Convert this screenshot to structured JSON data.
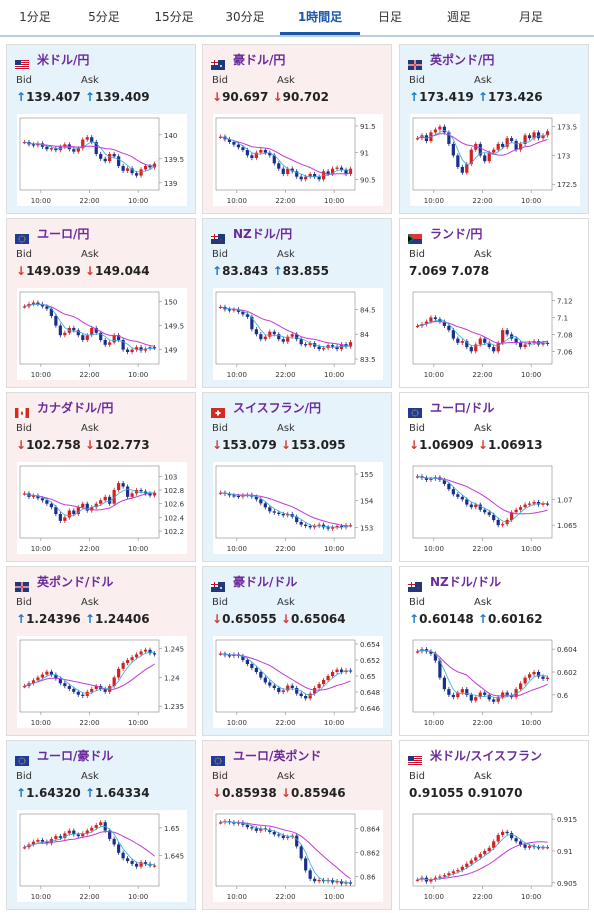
{
  "tabs": [
    {
      "label": "1分足",
      "active": false
    },
    {
      "label": "5分足",
      "active": false
    },
    {
      "label": "15分足",
      "active": false
    },
    {
      "label": "30分足",
      "active": false
    },
    {
      "label": "1時間足",
      "active": true
    },
    {
      "label": "日足",
      "active": false
    },
    {
      "label": "週足",
      "active": false
    },
    {
      "label": "月足",
      "active": false
    }
  ],
  "labels": {
    "bid": "Bid",
    "ask": "Ask"
  },
  "colors": {
    "up": "#1777c9",
    "down": "#d9362f",
    "candle_up": "#d32020",
    "candle_down": "#1a2f8a",
    "ma": "#c23bd8",
    "ma_short": "#33a9e0",
    "pair_name": "#6b2a9b"
  },
  "cards": [
    {
      "pair": "米ドル/円",
      "flag": "us-flag",
      "bg": "blue",
      "bid": "139.407",
      "ask": "139.409",
      "bid_dir": "up",
      "ask_dir": "up",
      "chart_data": {
        "type": "candlestick",
        "x_ticks": [
          "10:00",
          "22:00",
          "10:00"
        ],
        "y_ticks": [
          "140",
          "139.5",
          "139"
        ],
        "ylim": [
          138.85,
          140.35
        ],
        "close": [
          139.85,
          139.8,
          139.78,
          139.82,
          139.75,
          139.7,
          139.72,
          139.68,
          139.75,
          139.8,
          139.7,
          139.65,
          139.72,
          139.9,
          139.95,
          139.85,
          139.6,
          139.5,
          139.45,
          139.6,
          139.55,
          139.35,
          139.25,
          139.3,
          139.2,
          139.15,
          139.28,
          139.35,
          139.32,
          139.4
        ]
      }
    },
    {
      "pair": "豪ドル/円",
      "flag": "au-flag",
      "bg": "pink",
      "bid": "90.697",
      "ask": "90.702",
      "bid_dir": "down",
      "ask_dir": "down",
      "chart_data": {
        "type": "candlestick",
        "x_ticks": [
          "10:00",
          "22:00",
          "10:00"
        ],
        "y_ticks": [
          "91.5",
          "91",
          "90.5"
        ],
        "ylim": [
          90.3,
          91.65
        ],
        "close": [
          91.3,
          91.25,
          91.2,
          91.15,
          91.1,
          91.05,
          90.95,
          90.9,
          91.0,
          91.05,
          91.0,
          90.95,
          90.8,
          90.7,
          90.6,
          90.7,
          90.65,
          90.55,
          90.5,
          90.55,
          90.6,
          90.55,
          90.5,
          90.65,
          90.6,
          90.7,
          90.72,
          90.68,
          90.6,
          90.7
        ]
      }
    },
    {
      "pair": "英ポンド/円",
      "flag": "gb-flag",
      "bg": "blue",
      "bid": "173.419",
      "ask": "173.426",
      "bid_dir": "up",
      "ask_dir": "up",
      "chart_data": {
        "type": "candlestick",
        "x_ticks": [
          "10:00",
          "22:00",
          "10:00"
        ],
        "y_ticks": [
          "173.5",
          "173",
          "172.5"
        ],
        "ylim": [
          172.4,
          173.65
        ],
        "close": [
          173.3,
          173.35,
          173.25,
          173.4,
          173.45,
          173.5,
          173.4,
          173.2,
          173.0,
          172.8,
          172.7,
          172.85,
          173.1,
          173.2,
          173.0,
          172.9,
          173.05,
          173.1,
          173.2,
          173.15,
          173.3,
          173.25,
          173.1,
          173.2,
          173.35,
          173.3,
          173.4,
          173.3,
          173.35,
          173.42
        ]
      }
    },
    {
      "pair": "ユーロ/円",
      "flag": "eu-flag",
      "bg": "pink",
      "bid": "149.039",
      "ask": "149.044",
      "bid_dir": "down",
      "ask_dir": "down",
      "chart_data": {
        "type": "candlestick",
        "x_ticks": [
          "10:00",
          "22:00",
          "10:00"
        ],
        "y_ticks": [
          "150",
          "149.5",
          "149"
        ],
        "ylim": [
          148.7,
          150.2
        ],
        "close": [
          149.9,
          149.95,
          149.98,
          149.95,
          149.9,
          149.85,
          149.7,
          149.5,
          149.3,
          149.35,
          149.45,
          149.4,
          149.3,
          149.2,
          149.3,
          149.45,
          149.35,
          149.2,
          149.1,
          149.15,
          149.3,
          149.2,
          149.0,
          148.95,
          149.0,
          149.05,
          148.98,
          149.02,
          149.05,
          149.04
        ]
      }
    },
    {
      "pair": "NZドル/円",
      "flag": "nz-flag",
      "bg": "blue",
      "bid": "83.843",
      "ask": "83.855",
      "bid_dir": "up",
      "ask_dir": "up",
      "chart_data": {
        "type": "candlestick",
        "x_ticks": [
          "10:00",
          "22:00",
          "10:00"
        ],
        "y_ticks": [
          "84.5",
          "84",
          "83.5"
        ],
        "ylim": [
          83.4,
          84.85
        ],
        "close": [
          84.55,
          84.5,
          84.48,
          84.5,
          84.45,
          84.4,
          84.35,
          84.1,
          84.0,
          83.9,
          83.95,
          84.05,
          84.0,
          83.9,
          83.85,
          83.95,
          84.0,
          83.9,
          83.8,
          83.78,
          83.82,
          83.75,
          83.7,
          83.72,
          83.78,
          83.75,
          83.7,
          83.8,
          83.75,
          83.84
        ]
      }
    },
    {
      "pair": "ランド/円",
      "flag": "za-flag",
      "bg": "white",
      "bid": "7.069",
      "ask": "7.078",
      "bid_dir": "",
      "ask_dir": "",
      "chart_data": {
        "type": "candlestick",
        "x_ticks": [
          "10:00",
          "22:00",
          "10:00"
        ],
        "y_ticks": [
          "7.12",
          "7.1",
          "7.08",
          "7.06"
        ],
        "ylim": [
          7.045,
          7.13
        ],
        "close": [
          7.09,
          7.092,
          7.095,
          7.1,
          7.098,
          7.095,
          7.09,
          7.085,
          7.075,
          7.07,
          7.072,
          7.065,
          7.06,
          7.068,
          7.075,
          7.07,
          7.065,
          7.06,
          7.07,
          7.085,
          7.08,
          7.075,
          7.07,
          7.065,
          7.068,
          7.07,
          7.072,
          7.068,
          7.07,
          7.069
        ]
      }
    },
    {
      "pair": "カナダドル/円",
      "flag": "ca-flag",
      "bg": "pink",
      "bid": "102.758",
      "ask": "102.773",
      "bid_dir": "down",
      "ask_dir": "down",
      "chart_data": {
        "type": "candlestick",
        "x_ticks": [
          "10:00",
          "22:00",
          "10:00"
        ],
        "y_ticks": [
          "103",
          "102.8",
          "102.6",
          "102.4",
          "102.2"
        ],
        "ylim": [
          102.1,
          103.15
        ],
        "close": [
          102.75,
          102.7,
          102.72,
          102.68,
          102.65,
          102.6,
          102.55,
          102.45,
          102.35,
          102.4,
          102.5,
          102.45,
          102.55,
          102.6,
          102.5,
          102.55,
          102.6,
          102.65,
          102.7,
          102.6,
          102.8,
          102.9,
          102.85,
          102.7,
          102.75,
          102.8,
          102.78,
          102.75,
          102.72,
          102.76
        ]
      }
    },
    {
      "pair": "スイスフラン/円",
      "flag": "ch-flag",
      "bg": "blue",
      "bid": "153.079",
      "ask": "153.095",
      "bid_dir": "down",
      "ask_dir": "down",
      "chart_data": {
        "type": "candlestick",
        "x_ticks": [
          "10:00",
          "22:00",
          "10:00"
        ],
        "y_ticks": [
          "155",
          "154",
          "153"
        ],
        "ylim": [
          152.6,
          155.3
        ],
        "close": [
          154.3,
          154.25,
          154.2,
          154.18,
          154.15,
          154.2,
          154.22,
          154.15,
          154.05,
          153.9,
          153.75,
          153.6,
          153.55,
          153.5,
          153.45,
          153.5,
          153.4,
          153.2,
          153.1,
          153.05,
          153.0,
          153.05,
          153.1,
          153.0,
          152.95,
          153.0,
          153.05,
          153.0,
          153.08,
          153.08
        ]
      }
    },
    {
      "pair": "ユーロ/ドル",
      "flag": "eu-us-flag",
      "bg": "white",
      "bid": "1.06909",
      "ask": "1.06913",
      "bid_dir": "down",
      "ask_dir": "down",
      "chart_data": {
        "type": "candlestick",
        "x_ticks": [
          "10:00",
          "22:00",
          "10:00"
        ],
        "y_ticks": [
          "1.07",
          "1.065"
        ],
        "ylim": [
          1.0625,
          1.0765
        ],
        "close": [
          1.0745,
          1.0742,
          1.0738,
          1.074,
          1.0743,
          1.0738,
          1.073,
          1.072,
          1.071,
          1.0705,
          1.07,
          1.069,
          1.0685,
          1.069,
          1.068,
          1.0675,
          1.067,
          1.066,
          1.065,
          1.0652,
          1.066,
          1.0675,
          1.068,
          1.0685,
          1.069,
          1.0692,
          1.0695,
          1.069,
          1.0692,
          1.0691
        ]
      }
    },
    {
      "pair": "英ポンド/ドル",
      "flag": "gb-us-flag",
      "bg": "pink",
      "bid": "1.24396",
      "ask": "1.24406",
      "bid_dir": "up",
      "ask_dir": "up",
      "chart_data": {
        "type": "candlestick",
        "x_ticks": [
          "10:00",
          "22:00",
          "10:00"
        ],
        "y_ticks": [
          "1.245",
          "1.24",
          "1.235"
        ],
        "ylim": [
          1.234,
          1.2465
        ],
        "close": [
          1.2385,
          1.239,
          1.2395,
          1.24,
          1.2405,
          1.241,
          1.2405,
          1.2398,
          1.239,
          1.2385,
          1.238,
          1.2375,
          1.237,
          1.2368,
          1.2375,
          1.238,
          1.2385,
          1.238,
          1.2375,
          1.2385,
          1.24,
          1.2415,
          1.2425,
          1.243,
          1.2435,
          1.244,
          1.2445,
          1.2448,
          1.2442,
          1.244
        ]
      }
    },
    {
      "pair": "豪ドル/ドル",
      "flag": "au-us-flag",
      "bg": "blue",
      "bid": "0.65055",
      "ask": "0.65064",
      "bid_dir": "down",
      "ask_dir": "down",
      "chart_data": {
        "type": "candlestick",
        "x_ticks": [
          "10:00",
          "22:00",
          "10:00"
        ],
        "y_ticks": [
          "0.654",
          "0.652",
          "0.65",
          "0.648",
          "0.646"
        ],
        "ylim": [
          0.6455,
          0.6545
        ],
        "close": [
          0.6528,
          0.6526,
          0.6525,
          0.6527,
          0.6525,
          0.652,
          0.6515,
          0.651,
          0.6505,
          0.6498,
          0.6492,
          0.6488,
          0.6485,
          0.648,
          0.6482,
          0.6488,
          0.6485,
          0.6478,
          0.6475,
          0.6472,
          0.6478,
          0.6485,
          0.649,
          0.6495,
          0.65,
          0.6505,
          0.6508,
          0.6505,
          0.6507,
          0.6506
        ]
      }
    },
    {
      "pair": "NZドル/ドル",
      "flag": "nz-us-flag",
      "bg": "white",
      "bid": "0.60148",
      "ask": "0.60162",
      "bid_dir": "up",
      "ask_dir": "up",
      "chart_data": {
        "type": "candlestick",
        "x_ticks": [
          "10:00",
          "22:00",
          "10:00"
        ],
        "y_ticks": [
          "0.604",
          "0.602",
          "0.6"
        ],
        "ylim": [
          0.5985,
          0.6048
        ],
        "close": [
          0.6038,
          0.604,
          0.6038,
          0.6036,
          0.603,
          0.6015,
          0.6005,
          0.6,
          0.5998,
          0.6002,
          0.6005,
          0.6,
          0.5995,
          0.5998,
          0.6002,
          0.6,
          0.5996,
          0.5994,
          0.5998,
          0.6002,
          0.6,
          0.5998,
          0.6005,
          0.601,
          0.6015,
          0.6018,
          0.602,
          0.6016,
          0.6014,
          0.6015
        ]
      }
    },
    {
      "pair": "ユーロ/豪ドル",
      "flag": "eu-au-flag",
      "bg": "blue",
      "bid": "1.64320",
      "ask": "1.64334",
      "bid_dir": "up",
      "ask_dir": "up",
      "chart_data": {
        "type": "candlestick",
        "x_ticks": [
          "10:00",
          "22:00",
          "10:00"
        ],
        "y_ticks": [
          "1.65",
          "1.645"
        ],
        "ylim": [
          1.6395,
          1.6525
        ],
        "close": [
          1.6465,
          1.647,
          1.6475,
          1.6478,
          1.6475,
          1.6472,
          1.648,
          1.6485,
          1.6482,
          1.649,
          1.6495,
          1.6488,
          1.6485,
          1.649,
          1.6495,
          1.65,
          1.6505,
          1.651,
          1.6495,
          1.648,
          1.647,
          1.6455,
          1.6445,
          1.644,
          1.6435,
          1.643,
          1.6438,
          1.6435,
          1.6432,
          1.6432
        ]
      }
    },
    {
      "pair": "ユーロ/英ポンド",
      "flag": "eu-gb-flag",
      "bg": "pink",
      "bid": "0.85938",
      "ask": "0.85946",
      "bid_dir": "down",
      "ask_dir": "down",
      "chart_data": {
        "type": "candlestick",
        "x_ticks": [
          "10:00",
          "22:00",
          "10:00"
        ],
        "y_ticks": [
          "0.864",
          "0.862",
          "0.86"
        ],
        "ylim": [
          0.8592,
          0.8652
        ],
        "close": [
          0.8645,
          0.8646,
          0.8645,
          0.8644,
          0.8645,
          0.8643,
          0.8641,
          0.864,
          0.8638,
          0.864,
          0.8639,
          0.8637,
          0.8635,
          0.8634,
          0.8632,
          0.8633,
          0.8634,
          0.8625,
          0.8615,
          0.8605,
          0.8598,
          0.8596,
          0.8597,
          0.8596,
          0.8597,
          0.8595,
          0.8596,
          0.8594,
          0.8595,
          0.8594
        ]
      }
    },
    {
      "pair": "米ドル/スイスフラン",
      "flag": "us-ch-flag",
      "bg": "white",
      "bid": "0.91055",
      "ask": "0.91070",
      "bid_dir": "",
      "ask_dir": "",
      "chart_data": {
        "type": "candlestick",
        "x_ticks": [
          "10:00",
          "22:00",
          "10:00"
        ],
        "y_ticks": [
          "0.915",
          "0.91",
          "0.905"
        ],
        "ylim": [
          0.9045,
          0.9158
        ],
        "close": [
          0.9055,
          0.9058,
          0.9052,
          0.9055,
          0.9058,
          0.906,
          0.9062,
          0.9065,
          0.9068,
          0.907,
          0.9075,
          0.908,
          0.9085,
          0.909,
          0.9095,
          0.91,
          0.9105,
          0.9115,
          0.9125,
          0.913,
          0.9128,
          0.912,
          0.9115,
          0.911,
          0.9105,
          0.9108,
          0.9106,
          0.9105,
          0.9106,
          0.9106
        ]
      }
    }
  ]
}
